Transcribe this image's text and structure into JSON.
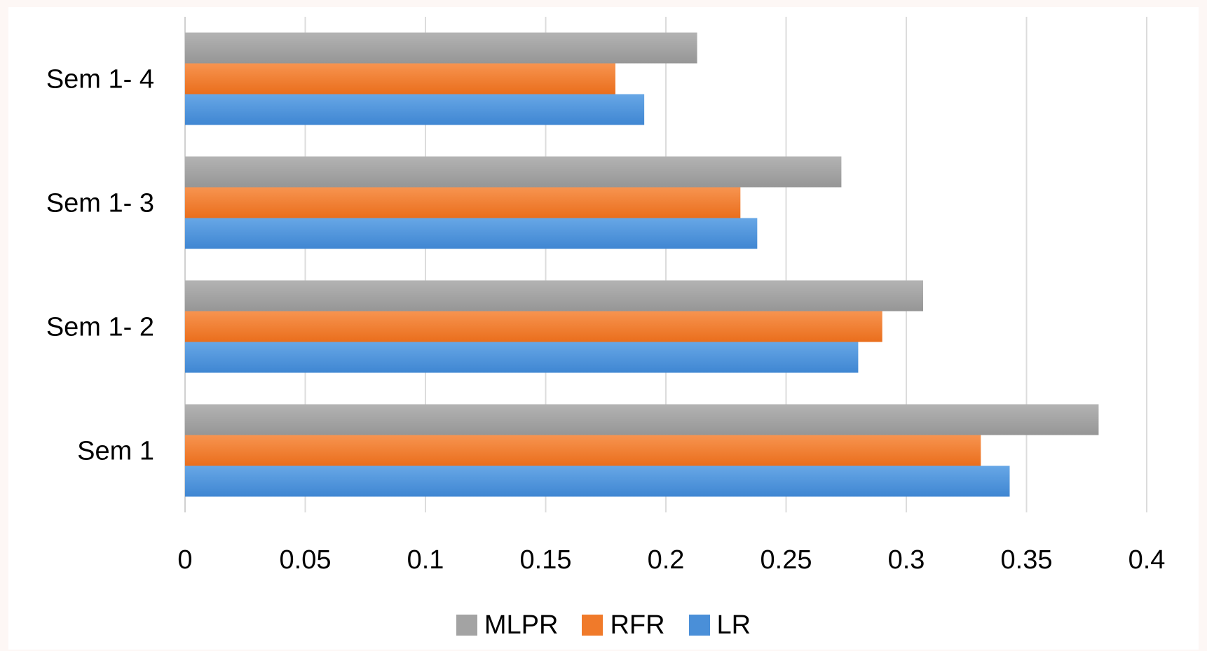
{
  "chart_data": {
    "type": "bar",
    "orientation": "horizontal",
    "title": "",
    "xlabel": "",
    "ylabel": "",
    "categories": [
      "Sem 1",
      "Sem 1- 2",
      "Sem 1- 3",
      "Sem 1- 4"
    ],
    "xlim": [
      0,
      0.4
    ],
    "xticks": [
      "0",
      "0.05",
      "0.1",
      "0.15",
      "0.2",
      "0.25",
      "0.3",
      "0.35",
      "0.4"
    ],
    "grid": true,
    "legend_position": "bottom",
    "series": [
      {
        "name": "LR",
        "color": "#4a8fd8",
        "values": [
          0.343,
          0.28,
          0.238,
          0.191
        ]
      },
      {
        "name": "RFR",
        "color": "#f07a2a",
        "values": [
          0.331,
          0.29,
          0.231,
          0.179
        ]
      },
      {
        "name": "MLPR",
        "color": "#a3a3a3",
        "values": [
          0.38,
          0.307,
          0.273,
          0.213
        ]
      }
    ]
  }
}
